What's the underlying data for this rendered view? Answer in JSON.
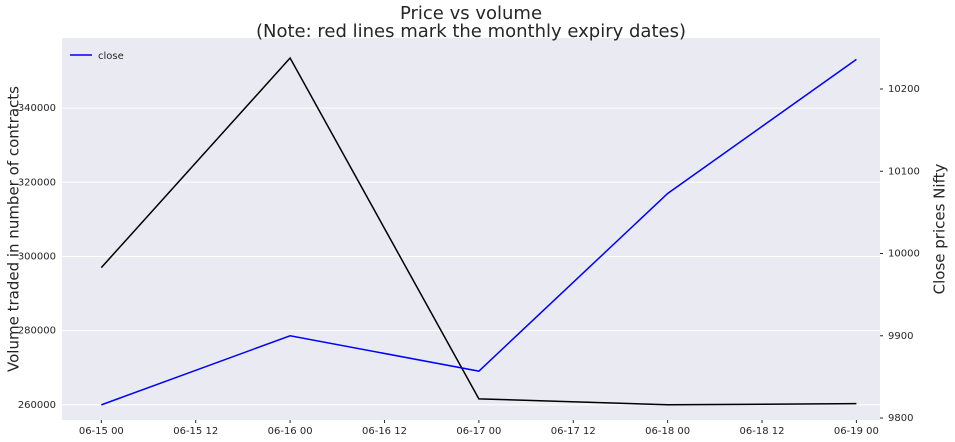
{
  "chart_data": {
    "type": "line",
    "title": "Price vs volume",
    "subtitle": "(Note: red lines mark the monthly expiry dates)",
    "y_label": "Volume traded in number of contracts",
    "y2_label": "Close prices Nifty",
    "x": [
      "06-15 00",
      "06-16 00",
      "06-17 00",
      "06-18 00",
      "06-19 00"
    ],
    "xlim": [
      "06-14 19",
      "06-19 03"
    ],
    "xticks": [
      "06-15 00",
      "06-15 12",
      "06-16 00",
      "06-16 12",
      "06-17 00",
      "06-17 12",
      "06-18 00",
      "06-18 12",
      "06-19 00"
    ],
    "ylim": [
      255900,
      358900
    ],
    "yticks": [
      260000,
      280000,
      300000,
      320000,
      340000
    ],
    "y2lim": [
      9797.6,
      10262
    ],
    "y2ticks": [
      9800,
      9900,
      10000,
      10100,
      10200
    ],
    "grid": true,
    "legend": "upper left",
    "series": [
      {
        "color": "#000000",
        "values": [
          297000,
          353500,
          261600,
          260000,
          260300
        ]
      },
      {
        "name": "close",
        "color": "#0000ff",
        "axis": "y2",
        "values": [
          9816,
          9900,
          9857,
          10073,
          10236
        ]
      }
    ]
  }
}
